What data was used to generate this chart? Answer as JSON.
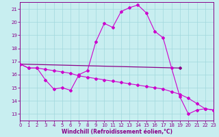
{
  "xlabel": "Windchill (Refroidissement éolien,°C)",
  "bg_color": "#c8eef0",
  "grid_color": "#a0d8dc",
  "line_color": "#880088",
  "line_color_bright": "#cc00cc",
  "xmin": 0,
  "xmax": 23,
  "ymin": 12.5,
  "ymax": 21.5,
  "yticks": [
    13,
    14,
    15,
    16,
    17,
    18,
    19,
    20,
    21
  ],
  "xticks": [
    0,
    1,
    2,
    3,
    4,
    5,
    6,
    7,
    8,
    9,
    10,
    11,
    12,
    13,
    14,
    15,
    16,
    17,
    18,
    19,
    20,
    21,
    22,
    23
  ],
  "curve1_x": [
    0,
    1,
    2,
    3,
    4,
    5,
    6,
    7,
    8,
    9,
    10,
    11,
    12,
    13,
    14,
    15,
    16,
    17,
    18,
    19,
    20,
    21,
    22,
    23
  ],
  "curve1_y": [
    16.8,
    16.5,
    16.5,
    15.6,
    14.9,
    15.0,
    14.8,
    16.0,
    16.3,
    18.5,
    19.9,
    19.6,
    20.8,
    21.1,
    21.3,
    20.7,
    19.3,
    18.8,
    16.5,
    14.3,
    13.0,
    13.3,
    13.4,
    13.3
  ],
  "curve2_x": [
    0,
    19
  ],
  "curve2_y": [
    16.8,
    16.5
  ],
  "curve3_x": [
    0,
    1,
    2,
    3,
    4,
    5,
    6,
    7,
    8,
    9,
    10,
    11,
    12,
    13,
    14,
    15,
    16,
    17,
    18,
    19,
    20,
    21,
    22,
    23
  ],
  "curve3_y": [
    16.8,
    16.5,
    16.5,
    16.4,
    16.3,
    16.2,
    16.1,
    15.9,
    15.8,
    15.7,
    15.6,
    15.5,
    15.4,
    15.3,
    15.2,
    15.1,
    15.0,
    14.9,
    14.7,
    14.5,
    14.2,
    13.8,
    13.4,
    13.3
  ]
}
